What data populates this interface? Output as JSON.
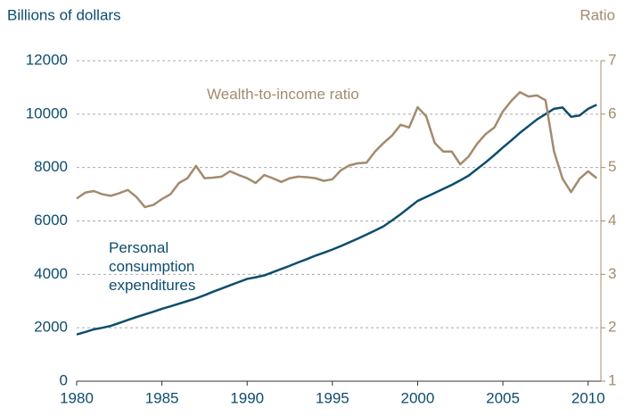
{
  "chart_data": {
    "type": "line",
    "y_label": "Billions of dollars",
    "y2_label": "Ratio",
    "x": [
      1980,
      1980.5,
      1981,
      1981.5,
      1982,
      1982.5,
      1983,
      1983.5,
      1984,
      1984.5,
      1985,
      1985.5,
      1986,
      1986.5,
      1987,
      1987.5,
      1988,
      1988.5,
      1989,
      1989.5,
      1990,
      1990.5,
      1991,
      1991.5,
      1992,
      1992.5,
      1993,
      1993.5,
      1994,
      1994.5,
      1995,
      1995.5,
      1996,
      1996.5,
      1997,
      1997.5,
      1998,
      1998.5,
      1999,
      1999.5,
      2000,
      2000.5,
      2001,
      2001.5,
      2002,
      2002.5,
      2003,
      2003.5,
      2004,
      2004.5,
      2005,
      2005.5,
      2006,
      2006.5,
      2007,
      2007.5,
      2008,
      2008.5,
      2009,
      2009.5,
      2010,
      2010.5
    ],
    "series": [
      {
        "name": "Personal consumption expenditures",
        "color": "#0d4d6e",
        "axis": "y",
        "values": [
          1750,
          1840,
          1940,
          2000,
          2070,
          2180,
          2290,
          2400,
          2500,
          2600,
          2710,
          2800,
          2900,
          3000,
          3100,
          3220,
          3350,
          3470,
          3590,
          3710,
          3830,
          3890,
          3960,
          4080,
          4200,
          4320,
          4450,
          4570,
          4700,
          4810,
          4930,
          5060,
          5200,
          5340,
          5490,
          5640,
          5800,
          6020,
          6250,
          6500,
          6750,
          6900,
          7050,
          7200,
          7350,
          7520,
          7700,
          7950,
          8200,
          8470,
          8750,
          9020,
          9300,
          9550,
          9800,
          10000,
          10200,
          10250,
          9900,
          9950,
          10200,
          10350
        ]
      },
      {
        "name": "Wealth-to-income ratio",
        "color": "#a38b6d",
        "axis": "y2",
        "values": [
          4.42,
          4.53,
          4.56,
          4.5,
          4.47,
          4.52,
          4.58,
          4.45,
          4.26,
          4.3,
          4.41,
          4.5,
          4.71,
          4.8,
          5.03,
          4.8,
          4.81,
          4.83,
          4.93,
          4.86,
          4.8,
          4.71,
          4.86,
          4.8,
          4.73,
          4.8,
          4.83,
          4.82,
          4.8,
          4.75,
          4.78,
          4.95,
          5.04,
          5.08,
          5.09,
          5.3,
          5.46,
          5.6,
          5.8,
          5.75,
          6.13,
          5.96,
          5.46,
          5.3,
          5.3,
          5.06,
          5.21,
          5.45,
          5.63,
          5.75,
          6.05,
          6.25,
          6.41,
          6.33,
          6.35,
          6.26,
          5.3,
          4.79,
          4.54,
          4.79,
          4.93,
          4.8
        ]
      }
    ],
    "xlim": [
      1980,
      2010.75
    ],
    "xticks": [
      1980,
      1985,
      1990,
      1995,
      2000,
      2005,
      2010
    ],
    "ylim": [
      0,
      12000
    ],
    "yticks": [
      0,
      2000,
      4000,
      6000,
      8000,
      10000,
      12000
    ],
    "y2lim": [
      1,
      7
    ],
    "y2ticks": [
      1,
      2,
      3,
      4,
      5,
      6,
      7
    ],
    "grid": true
  }
}
